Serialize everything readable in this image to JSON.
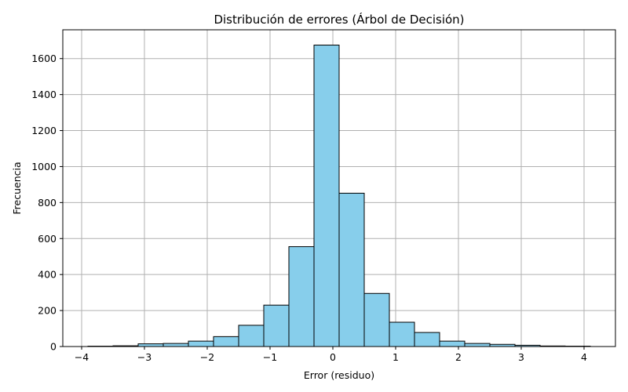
{
  "chart_data": {
    "type": "bar",
    "title": "Distribución de errores (Árbol de Decisión)",
    "xlabel": "Error (residuo)",
    "ylabel": "Frecuencia",
    "xlim": [
      -4.3,
      4.5
    ],
    "ylim": [
      0,
      1760
    ],
    "grid": true,
    "colors": {
      "bar_fill": "#87ceeb",
      "bar_edge": "#000000",
      "grid": "#b0b0b0"
    },
    "x_ticks": [
      -4,
      -3,
      -2,
      -1,
      0,
      1,
      2,
      3,
      4
    ],
    "x_tick_labels": [
      "−4",
      "−3",
      "−2",
      "−1",
      "0",
      "1",
      "2",
      "3",
      "4"
    ],
    "y_ticks": [
      0,
      200,
      400,
      600,
      800,
      1000,
      1200,
      1400,
      1600
    ],
    "y_tick_labels": [
      "0",
      "200",
      "400",
      "600",
      "800",
      "1000",
      "1200",
      "1400",
      "1600"
    ],
    "bins": [
      {
        "x0": -3.9,
        "x1": -3.5,
        "count": 2
      },
      {
        "x0": -3.5,
        "x1": -3.1,
        "count": 4
      },
      {
        "x0": -3.1,
        "x1": -2.7,
        "count": 15
      },
      {
        "x0": -2.7,
        "x1": -2.3,
        "count": 17
      },
      {
        "x0": -2.3,
        "x1": -1.9,
        "count": 30
      },
      {
        "x0": -1.9,
        "x1": -1.5,
        "count": 55
      },
      {
        "x0": -1.5,
        "x1": -1.1,
        "count": 118
      },
      {
        "x0": -1.1,
        "x1": -0.7,
        "count": 230
      },
      {
        "x0": -0.7,
        "x1": -0.3,
        "count": 555
      },
      {
        "x0": -0.3,
        "x1": 0.1,
        "count": 1675
      },
      {
        "x0": 0.1,
        "x1": 0.5,
        "count": 852
      },
      {
        "x0": 0.5,
        "x1": 0.9,
        "count": 295
      },
      {
        "x0": 0.9,
        "x1": 1.3,
        "count": 135
      },
      {
        "x0": 1.3,
        "x1": 1.7,
        "count": 78
      },
      {
        "x0": 1.7,
        "x1": 2.1,
        "count": 30
      },
      {
        "x0": 2.1,
        "x1": 2.5,
        "count": 17
      },
      {
        "x0": 2.5,
        "x1": 2.9,
        "count": 12
      },
      {
        "x0": 2.9,
        "x1": 3.3,
        "count": 7
      },
      {
        "x0": 3.3,
        "x1": 3.7,
        "count": 3
      },
      {
        "x0": 3.7,
        "x1": 4.1,
        "count": 2
      }
    ]
  }
}
